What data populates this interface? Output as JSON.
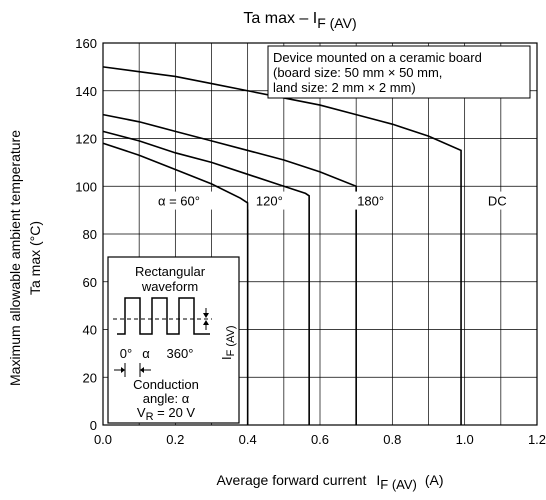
{
  "chart_data": {
    "type": "line",
    "title": "Ta max – I",
    "title_sub": "F (AV)",
    "xlabel": "Average forward current",
    "xlabel_symbol": "I",
    "xlabel_symbol_sub": "F (AV)",
    "xlabel_unit": "(A)",
    "ylabel_line1": "Maximum allowable ambient temperature",
    "ylabel_line2": "Ta max    (°C)",
    "xlim": [
      0,
      1.2
    ],
    "ylim": [
      0,
      160
    ],
    "x_ticks": [
      "0.0",
      "0.2",
      "0.4",
      "0.6",
      "0.8",
      "1.0",
      "1.2"
    ],
    "y_ticks": [
      "0",
      "20",
      "40",
      "60",
      "80",
      "100",
      "120",
      "140",
      "160"
    ],
    "grid": true,
    "series": [
      {
        "name": "α = 60°",
        "x": [
          0,
          0.1,
          0.2,
          0.3,
          0.38,
          0.4,
          0.4
        ],
        "y": [
          118,
          113,
          107,
          101,
          95,
          93,
          0
        ]
      },
      {
        "name": "120°",
        "x": [
          0,
          0.1,
          0.2,
          0.3,
          0.4,
          0.5,
          0.56,
          0.57,
          0.57
        ],
        "y": [
          123,
          119,
          114,
          110,
          105,
          100,
          97,
          96,
          0
        ]
      },
      {
        "name": "180°",
        "x": [
          0,
          0.1,
          0.2,
          0.3,
          0.4,
          0.5,
          0.6,
          0.7,
          0.7
        ],
        "y": [
          130,
          127,
          123,
          119,
          115,
          111,
          106,
          100,
          0
        ]
      },
      {
        "name": "DC",
        "x": [
          0,
          0.1,
          0.2,
          0.3,
          0.4,
          0.5,
          0.6,
          0.7,
          0.8,
          0.9,
          0.99,
          0.99
        ],
        "y": [
          150,
          148,
          146,
          143,
          140,
          137,
          134,
          130,
          126,
          121,
          115,
          0
        ]
      }
    ],
    "annotation_note": [
      "Device mounted on a ceramic board",
      "(board size: 50 mm × 50 mm,",
      "land size: 2 mm × 2 mm)"
    ],
    "inset": {
      "title_line1": "Rectangular",
      "title_line2": "waveform",
      "current_label": "I",
      "current_label_sub": "F (AV)",
      "angle_zero": "0°",
      "angle_alpha": "α",
      "angle_full": "360°",
      "conduction_line1": "Conduction",
      "conduction_line2": "angle: α",
      "vr_symbol": "V",
      "vr_sub": "R",
      "vr_value": " = 20 V"
    }
  }
}
